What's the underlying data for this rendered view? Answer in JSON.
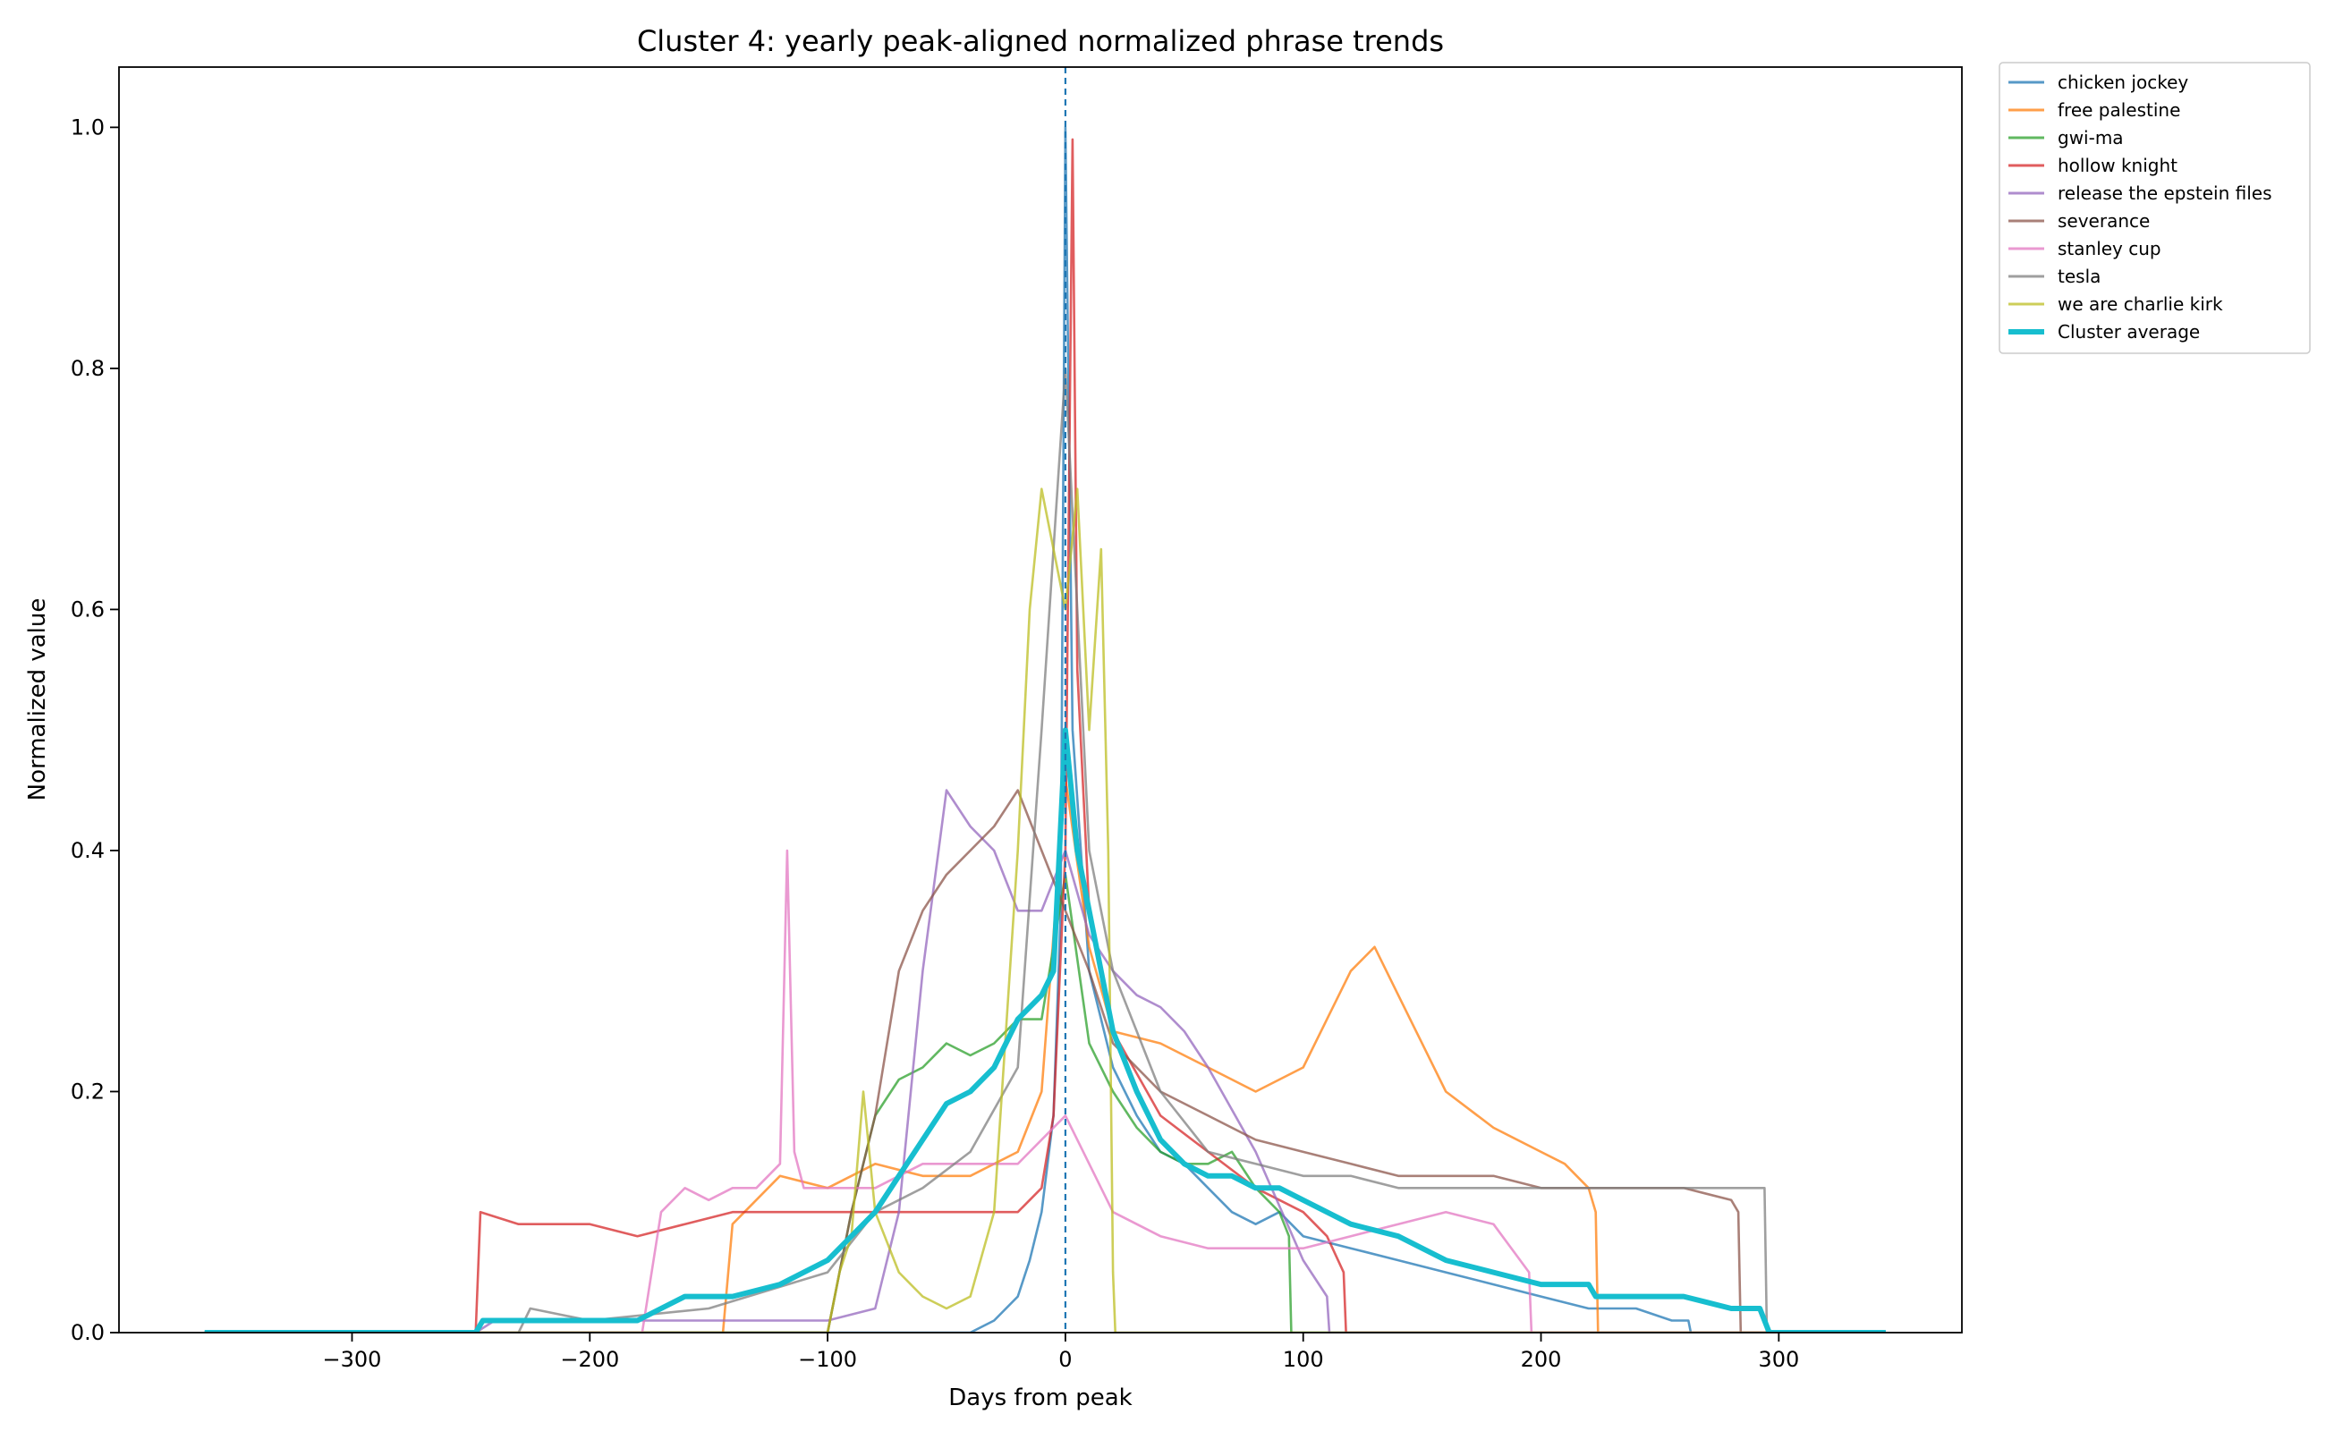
{
  "chart_data": {
    "type": "line",
    "title": "Cluster 4: yearly peak-aligned normalized phrase trends",
    "xlabel": "Days from peak",
    "ylabel": "Normalized value",
    "xlim": [
      -398,
      377
    ],
    "ylim": [
      0,
      1.05
    ],
    "xticks": [
      -300,
      -200,
      -100,
      0,
      100,
      200,
      300
    ],
    "xtick_labels": [
      "−300",
      "−200",
      "−100",
      "0",
      "100",
      "200",
      "300"
    ],
    "yticks": [
      0.0,
      0.2,
      0.4,
      0.6,
      0.8,
      1.0
    ],
    "ytick_labels": [
      "0.0",
      "0.2",
      "0.4",
      "0.6",
      "0.8",
      "1.0"
    ],
    "grid": false,
    "legend_position": "outside-top-right",
    "peak_line": {
      "x": 0,
      "style": "dashed",
      "color": "#1f77b4"
    },
    "series": [
      {
        "name": "chicken jockey",
        "color": "#1f77b4",
        "x": [
          -362,
          -100,
          -60,
          -40,
          -30,
          -20,
          -15,
          -10,
          -5,
          -2,
          0,
          3,
          10,
          20,
          30,
          40,
          50,
          60,
          70,
          80,
          90,
          100,
          120,
          140,
          160,
          180,
          200,
          220,
          240,
          255,
          262,
          263,
          345
        ],
        "y": [
          0,
          0,
          0,
          0,
          0.01,
          0.03,
          0.06,
          0.1,
          0.18,
          0.35,
          1.0,
          0.5,
          0.3,
          0.22,
          0.18,
          0.15,
          0.14,
          0.12,
          0.1,
          0.09,
          0.1,
          0.08,
          0.07,
          0.06,
          0.05,
          0.04,
          0.03,
          0.02,
          0.02,
          0.01,
          0.01,
          0,
          0
        ]
      },
      {
        "name": "free palestine",
        "color": "#ff7f0e",
        "x": [
          -362,
          -144,
          -140,
          -120,
          -100,
          -80,
          -60,
          -40,
          -20,
          -10,
          0,
          10,
          20,
          40,
          60,
          80,
          100,
          110,
          120,
          130,
          140,
          150,
          160,
          180,
          200,
          210,
          220,
          223,
          224,
          345
        ],
        "y": [
          0,
          0,
          0.09,
          0.13,
          0.12,
          0.14,
          0.13,
          0.13,
          0.15,
          0.2,
          0.46,
          0.32,
          0.25,
          0.24,
          0.22,
          0.2,
          0.22,
          0.26,
          0.3,
          0.32,
          0.28,
          0.24,
          0.2,
          0.17,
          0.15,
          0.14,
          0.12,
          0.1,
          0,
          0
        ]
      },
      {
        "name": "gwi-ma",
        "color": "#2ca02c",
        "x": [
          -362,
          -100,
          -95,
          -90,
          -80,
          -70,
          -60,
          -50,
          -40,
          -30,
          -20,
          -10,
          0,
          10,
          20,
          30,
          40,
          50,
          60,
          70,
          80,
          90,
          94,
          95,
          345
        ],
        "y": [
          0,
          0,
          0.05,
          0.1,
          0.18,
          0.21,
          0.22,
          0.24,
          0.23,
          0.24,
          0.26,
          0.26,
          0.38,
          0.24,
          0.2,
          0.17,
          0.15,
          0.14,
          0.14,
          0.15,
          0.12,
          0.1,
          0.08,
          0,
          0
        ]
      },
      {
        "name": "hollow knight",
        "color": "#d62728",
        "x": [
          -362,
          -248,
          -246,
          -230,
          -200,
          -180,
          -160,
          -140,
          -120,
          -100,
          -80,
          -60,
          -40,
          -20,
          -10,
          -5,
          0,
          3,
          5,
          10,
          20,
          40,
          60,
          80,
          100,
          110,
          117,
          118,
          345
        ],
        "y": [
          0,
          0,
          0.1,
          0.09,
          0.09,
          0.08,
          0.09,
          0.1,
          0.1,
          0.1,
          0.1,
          0.1,
          0.1,
          0.1,
          0.12,
          0.18,
          0.4,
          0.99,
          0.55,
          0.35,
          0.25,
          0.18,
          0.15,
          0.12,
          0.1,
          0.08,
          0.05,
          0,
          0
        ]
      },
      {
        "name": "release the epstein files",
        "color": "#9467bd",
        "x": [
          -362,
          -248,
          -240,
          -200,
          -160,
          -120,
          -100,
          -80,
          -70,
          -60,
          -50,
          -40,
          -30,
          -20,
          -10,
          0,
          10,
          20,
          30,
          40,
          50,
          60,
          80,
          100,
          110,
          111,
          345
        ],
        "y": [
          0,
          0,
          0.01,
          0.01,
          0.01,
          0.01,
          0.01,
          0.02,
          0.1,
          0.3,
          0.45,
          0.42,
          0.4,
          0.35,
          0.35,
          0.4,
          0.33,
          0.3,
          0.28,
          0.27,
          0.25,
          0.22,
          0.15,
          0.06,
          0.03,
          0,
          0
        ]
      },
      {
        "name": "severance",
        "color": "#8c564b",
        "x": [
          -362,
          -100,
          -90,
          -80,
          -70,
          -60,
          -50,
          -40,
          -30,
          -20,
          -10,
          0,
          10,
          20,
          40,
          60,
          80,
          100,
          120,
          140,
          160,
          180,
          200,
          220,
          240,
          260,
          280,
          283,
          284,
          345
        ],
        "y": [
          0,
          0,
          0.1,
          0.18,
          0.3,
          0.35,
          0.38,
          0.4,
          0.42,
          0.45,
          0.4,
          0.35,
          0.3,
          0.24,
          0.2,
          0.18,
          0.16,
          0.15,
          0.14,
          0.13,
          0.13,
          0.13,
          0.12,
          0.12,
          0.12,
          0.12,
          0.11,
          0.1,
          0,
          0
        ]
      },
      {
        "name": "stanley cup",
        "color": "#e377c2",
        "x": [
          -362,
          -178,
          -170,
          -160,
          -150,
          -140,
          -130,
          -120,
          -117,
          -114,
          -110,
          -100,
          -80,
          -60,
          -40,
          -20,
          0,
          20,
          40,
          60,
          80,
          100,
          120,
          140,
          160,
          180,
          195,
          196,
          345
        ],
        "y": [
          0,
          0,
          0.1,
          0.12,
          0.11,
          0.12,
          0.12,
          0.14,
          0.4,
          0.15,
          0.12,
          0.12,
          0.12,
          0.14,
          0.14,
          0.14,
          0.18,
          0.1,
          0.08,
          0.07,
          0.07,
          0.07,
          0.08,
          0.09,
          0.1,
          0.09,
          0.05,
          0,
          0
        ]
      },
      {
        "name": "tesla",
        "color": "#7f7f7f",
        "x": [
          -362,
          -230,
          -225,
          -200,
          -150,
          -100,
          -80,
          -60,
          -40,
          -20,
          -10,
          0,
          10,
          20,
          40,
          60,
          80,
          100,
          120,
          140,
          160,
          180,
          200,
          220,
          240,
          260,
          280,
          294,
          295,
          345
        ],
        "y": [
          0,
          0,
          0.02,
          0.01,
          0.02,
          0.05,
          0.1,
          0.12,
          0.15,
          0.22,
          0.5,
          0.8,
          0.4,
          0.3,
          0.2,
          0.15,
          0.14,
          0.13,
          0.13,
          0.12,
          0.12,
          0.12,
          0.12,
          0.12,
          0.12,
          0.12,
          0.12,
          0.12,
          0,
          0
        ]
      },
      {
        "name": "we are charlie kirk",
        "color": "#bcbd22",
        "x": [
          -362,
          -100,
          -95,
          -90,
          -85,
          -80,
          -70,
          -60,
          -50,
          -40,
          -30,
          -20,
          -15,
          -10,
          -5,
          0,
          5,
          10,
          15,
          18,
          20,
          21,
          345
        ],
        "y": [
          0,
          0,
          0.05,
          0.08,
          0.2,
          0.1,
          0.05,
          0.03,
          0.02,
          0.03,
          0.1,
          0.4,
          0.6,
          0.7,
          0.65,
          0.6,
          0.7,
          0.5,
          0.65,
          0.4,
          0.05,
          0,
          0
        ]
      },
      {
        "name": "Cluster average",
        "color": "#17becf",
        "x": [
          -362,
          -248,
          -245,
          -200,
          -180,
          -170,
          -160,
          -140,
          -120,
          -100,
          -90,
          -80,
          -70,
          -60,
          -50,
          -40,
          -30,
          -20,
          -10,
          -5,
          0,
          5,
          10,
          20,
          30,
          40,
          50,
          60,
          70,
          80,
          90,
          100,
          120,
          140,
          160,
          180,
          200,
          220,
          223,
          240,
          260,
          280,
          292,
          296,
          345
        ],
        "y": [
          0,
          0,
          0.01,
          0.01,
          0.01,
          0.02,
          0.03,
          0.03,
          0.04,
          0.06,
          0.08,
          0.1,
          0.13,
          0.16,
          0.19,
          0.2,
          0.22,
          0.26,
          0.28,
          0.3,
          0.5,
          0.4,
          0.35,
          0.25,
          0.2,
          0.16,
          0.14,
          0.13,
          0.13,
          0.12,
          0.12,
          0.11,
          0.09,
          0.08,
          0.06,
          0.05,
          0.04,
          0.04,
          0.03,
          0.03,
          0.03,
          0.02,
          0.02,
          0,
          0
        ]
      }
    ]
  }
}
